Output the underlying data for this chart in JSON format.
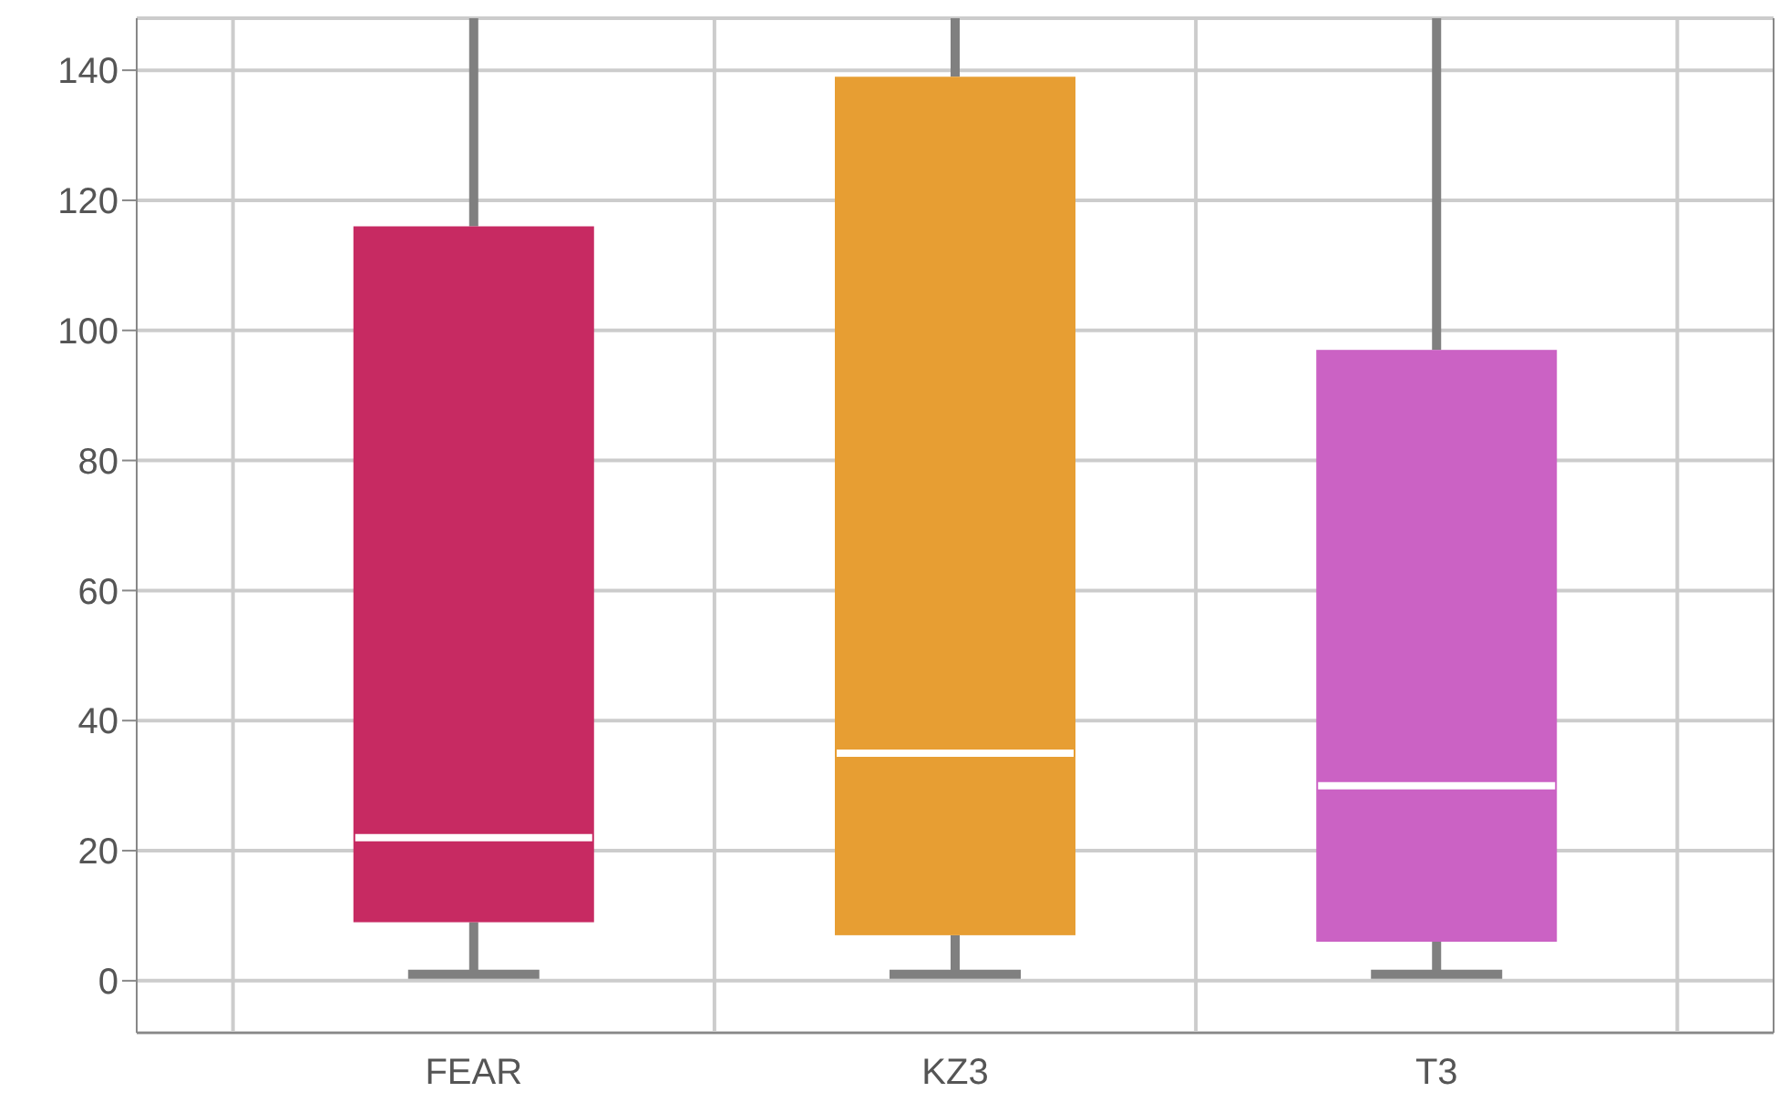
{
  "chart_data": {
    "type": "box",
    "categories": [
      "FEAR",
      "KZ3",
      "T3"
    ],
    "series": [
      {
        "color": "#c72a62",
        "boxes": [
          {
            "low": 1,
            "q1": 9,
            "median": 22,
            "q3": 116,
            "high": 148
          },
          null,
          null
        ]
      },
      {
        "color": "#e79e33",
        "boxes": [
          null,
          {
            "low": 1,
            "q1": 7,
            "median": 35,
            "q3": 139,
            "high": 148
          },
          null
        ]
      },
      {
        "color": "#cb62c4",
        "boxes": [
          null,
          null,
          {
            "low": 1,
            "q1": 6,
            "median": 30,
            "q3": 97,
            "high": 148
          }
        ]
      }
    ],
    "ylim": [
      -8,
      148
    ],
    "yticks": [
      0,
      20,
      40,
      60,
      80,
      100,
      120,
      140
    ],
    "grid": true
  }
}
